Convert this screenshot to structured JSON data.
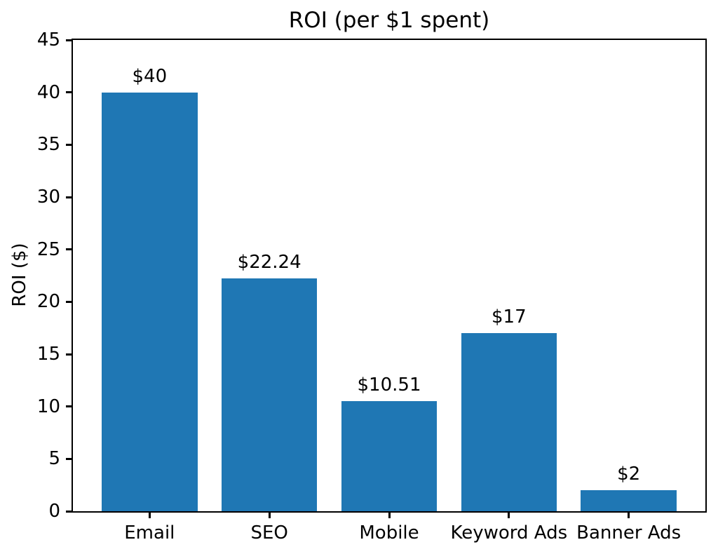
{
  "chart_data": {
    "type": "bar",
    "title": "ROI (per $1 spent)",
    "xlabel": "",
    "ylabel": "ROI ($)",
    "categories": [
      "Email",
      "SEO",
      "Mobile",
      "Keyword Ads",
      "Banner Ads"
    ],
    "values": [
      40,
      22.24,
      10.51,
      17,
      2
    ],
    "bar_value_labels": [
      "$40",
      "$22.24",
      "$10.51",
      "$17",
      "$2"
    ],
    "ylim": [
      0,
      45
    ],
    "yticks": [
      0,
      5,
      10,
      15,
      20,
      25,
      30,
      35,
      40,
      45
    ],
    "bar_color": "#1f77b4",
    "axis_color": "#000000",
    "text_color": "#000000",
    "background_color": "#ffffff",
    "grid": false,
    "legend_position": "none",
    "bar_width_fraction": 0.8,
    "x_margin_fraction": 0.05
  }
}
